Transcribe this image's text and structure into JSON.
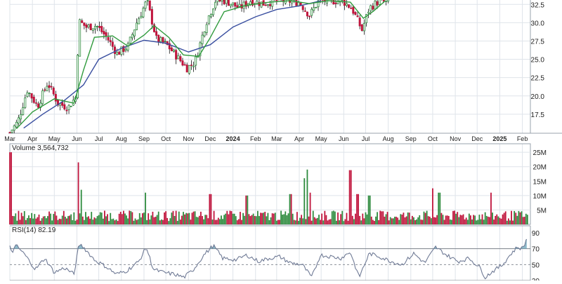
{
  "colors": {
    "up": "#2e8b3e",
    "down": "#c0143c",
    "sma_fast": "#2f9a3c",
    "sma_slow": "#3a4fa0",
    "rsi_line": "#6f7a95",
    "rsi_fill": "#6aa3b8",
    "grid": "#dfe4ea",
    "axis_text": "#222222",
    "frame": "#9aa3ad"
  },
  "chart_data": [
    {
      "type": "candlestick",
      "panel": "price",
      "x": [
        "2023-03",
        "2023-04",
        "2023-05",
        "2023-06",
        "2023-07",
        "2023-08",
        "2023-09",
        "2023-10",
        "2023-11",
        "2023-12",
        "2024-01",
        "2024-02",
        "2024-03",
        "2024-04",
        "2024-05",
        "2024-06",
        "2024-07",
        "2024-08",
        "2024-09",
        "2024-10",
        "2024-11",
        "2024-12",
        "2025-01",
        "2025-02"
      ],
      "x_tick_labels": [
        "Mar",
        "Apr",
        "May",
        "Jun",
        "Jul",
        "Aug",
        "Sep",
        "Oct",
        "Nov",
        "Dec",
        "2024",
        "Feb",
        "Mar",
        "Apr",
        "May",
        "Jun",
        "Jul",
        "Aug",
        "Sep",
        "Oct",
        "Nov",
        "Dec",
        "2025",
        "Feb"
      ],
      "y_ticks": [
        "17.5",
        "20.0",
        "22.5",
        "25.0",
        "27.5",
        "30.0",
        "32.5"
      ],
      "ylim": [
        14.9,
        33.1
      ],
      "price_path": [
        [
          "2023-03-01",
          15.0
        ],
        [
          "2023-03-12",
          16.5
        ],
        [
          "2023-03-25",
          20.8
        ],
        [
          "2023-04-08",
          18.6
        ],
        [
          "2023-04-22",
          21.8
        ],
        [
          "2023-05-06",
          19.0
        ],
        [
          "2023-05-20",
          18.4
        ],
        [
          "2023-05-30",
          19.8
        ],
        [
          "2023-06-04",
          30.2
        ],
        [
          "2023-06-14",
          29.4
        ],
        [
          "2023-06-28",
          29.6
        ],
        [
          "2023-07-12",
          28.0
        ],
        [
          "2023-07-26",
          25.8
        ],
        [
          "2023-08-10",
          26.8
        ],
        [
          "2023-08-22",
          30.0
        ],
        [
          "2023-09-05",
          33.0
        ],
        [
          "2023-09-18",
          27.8
        ],
        [
          "2023-10-02",
          27.0
        ],
        [
          "2023-10-16",
          25.4
        ],
        [
          "2023-10-30",
          23.8
        ],
        [
          "2023-11-10",
          24.6
        ],
        [
          "2023-11-25",
          30.0
        ],
        [
          "2023-12-08",
          33.0
        ],
        [
          "2023-12-22",
          33.0
        ],
        [
          "2024-01-10",
          32.0
        ],
        [
          "2024-01-25",
          33.0
        ],
        [
          "2024-02-12",
          32.6
        ],
        [
          "2024-02-28",
          33.0
        ],
        [
          "2024-03-15",
          33.0
        ],
        [
          "2024-04-01",
          32.8
        ],
        [
          "2024-04-15",
          31.0
        ],
        [
          "2024-04-28",
          33.0
        ],
        [
          "2024-05-12",
          33.0
        ],
        [
          "2024-05-30",
          33.0
        ],
        [
          "2024-06-12",
          32.0
        ],
        [
          "2024-06-26",
          29.0
        ],
        [
          "2024-07-06",
          32.0
        ],
        [
          "2024-07-20",
          33.0
        ],
        [
          "2024-08-03",
          32.6
        ]
      ],
      "sma_fast_path": [
        [
          "2023-03-10",
          15.5
        ],
        [
          "2023-04-01",
          17.8
        ],
        [
          "2023-05-01",
          19.6
        ],
        [
          "2023-05-28",
          19.0
        ],
        [
          "2023-06-10",
          23.5
        ],
        [
          "2023-06-25",
          28.0
        ],
        [
          "2023-07-20",
          28.2
        ],
        [
          "2023-08-10",
          26.8
        ],
        [
          "2023-09-01",
          28.3
        ],
        [
          "2023-09-15",
          29.6
        ],
        [
          "2023-10-05",
          28.0
        ],
        [
          "2023-10-25",
          25.6
        ],
        [
          "2023-11-15",
          25.4
        ],
        [
          "2023-11-30",
          27.8
        ],
        [
          "2023-12-20",
          31.5
        ],
        [
          "2024-01-20",
          32.4
        ],
        [
          "2024-02-20",
          32.8
        ],
        [
          "2024-03-20",
          33.0
        ],
        [
          "2024-04-15",
          32.6
        ],
        [
          "2024-05-10",
          33.0
        ],
        [
          "2024-06-10",
          32.8
        ],
        [
          "2024-06-28",
          30.6
        ],
        [
          "2024-07-12",
          31.6
        ],
        [
          "2024-07-28",
          33.0
        ]
      ],
      "sma_slow_path": [
        [
          "2023-03-20",
          15.6
        ],
        [
          "2023-04-15",
          17.5
        ],
        [
          "2023-05-15",
          19.4
        ],
        [
          "2023-06-10",
          21.5
        ],
        [
          "2023-07-01",
          25.0
        ],
        [
          "2023-08-01",
          26.5
        ],
        [
          "2023-09-01",
          27.6
        ],
        [
          "2023-10-01",
          27.2
        ],
        [
          "2023-11-01",
          26.0
        ],
        [
          "2023-12-01",
          27.0
        ],
        [
          "2024-01-01",
          29.4
        ],
        [
          "2024-02-01",
          30.8
        ],
        [
          "2024-03-01",
          31.8
        ],
        [
          "2024-04-01",
          32.3
        ],
        [
          "2024-05-01",
          33.0
        ]
      ]
    },
    {
      "type": "bar",
      "panel": "volume",
      "title": "Volume",
      "last_value": "3,564,732",
      "y_ticks": [
        "5M",
        "10M",
        "15M",
        "20M",
        "25M"
      ],
      "ylim": [
        0,
        26
      ],
      "spikes_millions": [
        [
          "2023-03-02",
          25.0
        ],
        [
          "2023-06-03",
          21.5
        ],
        [
          "2023-06-07",
          12.0
        ],
        [
          "2023-09-03",
          11.0
        ],
        [
          "2023-12-01",
          10.5
        ],
        [
          "2024-01-20",
          10.0
        ],
        [
          "2024-03-20",
          10.5
        ],
        [
          "2024-04-08",
          16.0
        ],
        [
          "2024-04-12",
          19.0
        ],
        [
          "2024-04-16",
          11.0
        ],
        [
          "2024-06-10",
          18.8
        ],
        [
          "2024-06-20",
          10.5
        ],
        [
          "2024-07-06",
          10.0
        ],
        [
          "2024-10-01",
          12.5
        ],
        [
          "2024-10-10",
          11.0
        ],
        [
          "2024-12-20",
          11.0
        ]
      ],
      "baseline_millions": 3.3
    },
    {
      "type": "line",
      "panel": "rsi",
      "title": "RSI(14)",
      "last_value": "82.19",
      "y_ticks": [
        "30",
        "50",
        "70",
        "90"
      ],
      "ylim": [
        30,
        90
      ],
      "reference_levels": [
        70,
        50,
        30
      ],
      "rsi_path": [
        [
          "2023-03-01",
          72
        ],
        [
          "2023-03-04",
          66
        ],
        [
          "2023-03-10",
          74
        ],
        [
          "2023-03-22",
          62
        ],
        [
          "2023-04-05",
          44
        ],
        [
          "2023-04-18",
          58
        ],
        [
          "2023-05-01",
          40
        ],
        [
          "2023-05-15",
          46
        ],
        [
          "2023-05-28",
          38
        ],
        [
          "2023-06-04",
          76
        ],
        [
          "2023-06-10",
          72
        ],
        [
          "2023-06-25",
          56
        ],
        [
          "2023-07-10",
          48
        ],
        [
          "2023-07-25",
          38
        ],
        [
          "2023-08-08",
          42
        ],
        [
          "2023-08-25",
          54
        ],
        [
          "2023-09-04",
          72
        ],
        [
          "2023-09-14",
          44
        ],
        [
          "2023-09-28",
          40
        ],
        [
          "2023-10-12",
          38
        ],
        [
          "2023-10-26",
          34
        ],
        [
          "2023-11-08",
          44
        ],
        [
          "2023-11-22",
          62
        ],
        [
          "2023-12-05",
          74
        ],
        [
          "2023-12-18",
          58
        ],
        [
          "2024-01-05",
          56
        ],
        [
          "2024-01-20",
          62
        ],
        [
          "2024-02-05",
          54
        ],
        [
          "2024-02-20",
          58
        ],
        [
          "2024-03-05",
          60
        ],
        [
          "2024-03-20",
          52
        ],
        [
          "2024-04-05",
          50
        ],
        [
          "2024-04-18",
          34
        ],
        [
          "2024-04-30",
          62
        ],
        [
          "2024-05-15",
          60
        ],
        [
          "2024-05-28",
          58
        ],
        [
          "2024-06-10",
          66
        ],
        [
          "2024-06-22",
          34
        ],
        [
          "2024-07-06",
          64
        ],
        [
          "2024-07-20",
          60
        ],
        [
          "2024-08-05",
          54
        ],
        [
          "2024-08-20",
          50
        ],
        [
          "2024-09-05",
          64
        ],
        [
          "2024-09-20",
          52
        ],
        [
          "2024-10-05",
          72
        ],
        [
          "2024-10-20",
          62
        ],
        [
          "2024-11-05",
          54
        ],
        [
          "2024-11-20",
          58
        ],
        [
          "2024-12-05",
          46
        ],
        [
          "2024-12-12",
          34
        ],
        [
          "2024-12-20",
          40
        ],
        [
          "2025-01-05",
          50
        ],
        [
          "2025-01-15",
          62
        ],
        [
          "2025-01-25",
          72
        ],
        [
          "2025-02-01",
          70
        ],
        [
          "2025-02-07",
          82
        ]
      ]
    }
  ]
}
